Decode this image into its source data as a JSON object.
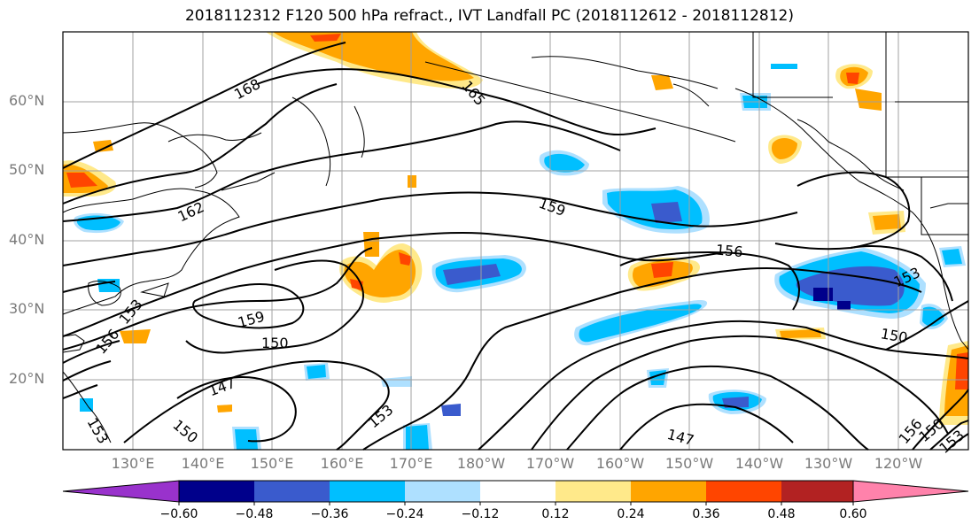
{
  "title": "2018112312 F120 500 hPa refract., IVT Landfall PC (2018112612 - 2018112812)",
  "lat_labels": [
    "60°N",
    "50°N",
    "40°N",
    "30°N",
    "20°N"
  ],
  "lon_labels": [
    "130°E",
    "140°E",
    "150°E",
    "160°E",
    "170°E",
    "180°W",
    "170°W",
    "160°W",
    "150°W",
    "140°W",
    "130°W",
    "120°W"
  ],
  "contour_labels": [
    "168",
    "165",
    "162",
    "159",
    "156",
    "153",
    "150",
    "147",
    "159",
    "156",
    "153",
    "150",
    "147",
    "153",
    "150",
    "156",
    "153",
    "150",
    "153"
  ],
  "colorbar": {
    "ticks": [
      "−0.60",
      "−0.48",
      "−0.36",
      "−0.24",
      "−0.12",
      "0.12",
      "0.24",
      "0.36",
      "0.48",
      "0.60"
    ],
    "colors": [
      "#9932cc",
      "#00008b",
      "#3a5bcd",
      "#00bfff",
      "#aee0ff",
      "#ffffff",
      "#ffe98a",
      "#ffa500",
      "#ff4500",
      "#b22222",
      "#ff82ab"
    ]
  },
  "colors": {
    "land_outline": "#000000",
    "contour": "#000000",
    "grid": "#a0a0a0",
    "axis_text": "#7a7a7a"
  }
}
